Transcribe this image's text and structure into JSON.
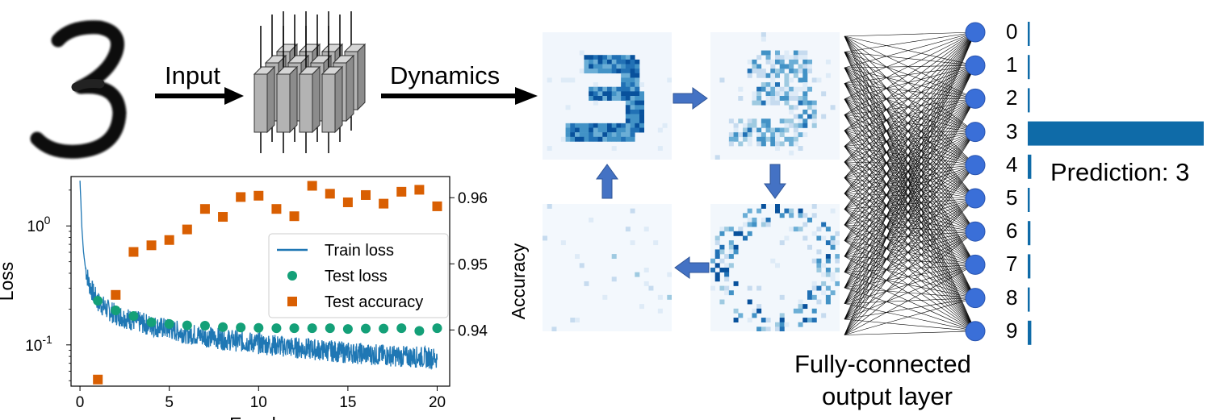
{
  "labels": {
    "input": "Input",
    "dynamics": "Dynamics",
    "fc_line1": "Fully-connected",
    "fc_line2": "output layer",
    "prediction": "Prediction: 3"
  },
  "output_digits": [
    "0",
    "1",
    "2",
    "3",
    "4",
    "5",
    "6",
    "7",
    "8",
    "9"
  ],
  "prediction_bars": [
    0.01,
    0.01,
    0.005,
    1.0,
    0.02,
    0.01,
    0.015,
    0.015,
    0.01,
    0.02
  ],
  "colors": {
    "accent_blue": "#1f77b4",
    "bar_blue": "#0f6ba8",
    "loss_orange": "#d95f02",
    "test_loss_green": "#14a078",
    "arrow_blue": "#4472c4",
    "node_blue": "#3a6fd8"
  },
  "chart_data": {
    "type": "line",
    "xlabel": "Epochs",
    "ylabel": "Loss",
    "y2label": "Accuracy",
    "x_ticks": [
      "0",
      "5",
      "10",
      "15",
      "20"
    ],
    "y_ticks": [
      "10^0",
      "10^-1"
    ],
    "y_log": true,
    "xlim": [
      -0.5,
      20.7
    ],
    "ylim": [
      0.045,
      2.6
    ],
    "y2_ticks": [
      "0.94",
      "0.95",
      "0.96"
    ],
    "y2lim": [
      0.9315,
      0.9632
    ],
    "legend_position": "center-right",
    "series": [
      {
        "name": "Train loss",
        "kind": "line",
        "x": [
          0,
          0.05,
          0.1,
          0.2,
          0.3,
          0.5,
          0.75,
          1,
          1.5,
          2,
          3,
          4,
          5,
          6,
          7,
          8,
          9,
          10,
          11,
          12,
          13,
          14,
          15,
          16,
          17,
          18,
          19,
          20
        ],
        "y": [
          2.4,
          1.6,
          1.0,
          0.6,
          0.45,
          0.33,
          0.27,
          0.23,
          0.2,
          0.18,
          0.16,
          0.145,
          0.135,
          0.125,
          0.118,
          0.112,
          0.107,
          0.103,
          0.099,
          0.095,
          0.092,
          0.089,
          0.086,
          0.084,
          0.082,
          0.08,
          0.079,
          0.077
        ]
      },
      {
        "name": "Test loss",
        "kind": "scatter",
        "x": [
          1,
          2,
          3,
          4,
          5,
          6,
          7,
          8,
          9,
          10,
          11,
          12,
          13,
          14,
          15,
          16,
          17,
          18,
          19,
          20
        ],
        "y": [
          0.235,
          0.195,
          0.175,
          0.155,
          0.15,
          0.146,
          0.145,
          0.141,
          0.14,
          0.139,
          0.138,
          0.138,
          0.138,
          0.138,
          0.136,
          0.137,
          0.137,
          0.138,
          0.131,
          0.138
        ]
      },
      {
        "name": "Test accuracy",
        "kind": "scatter",
        "axis": "right",
        "x": [
          1,
          2,
          3,
          4,
          5,
          6,
          7,
          8,
          9,
          10,
          11,
          12,
          13,
          14,
          15,
          16,
          17,
          18,
          19,
          20
        ],
        "y": [
          0.9325,
          0.9453,
          0.9518,
          0.9528,
          0.9536,
          0.9552,
          0.9583,
          0.9571,
          0.9601,
          0.9603,
          0.9583,
          0.9572,
          0.9618,
          0.9606,
          0.9593,
          0.9604,
          0.9591,
          0.9609,
          0.9612,
          0.9587
        ]
      }
    ]
  }
}
